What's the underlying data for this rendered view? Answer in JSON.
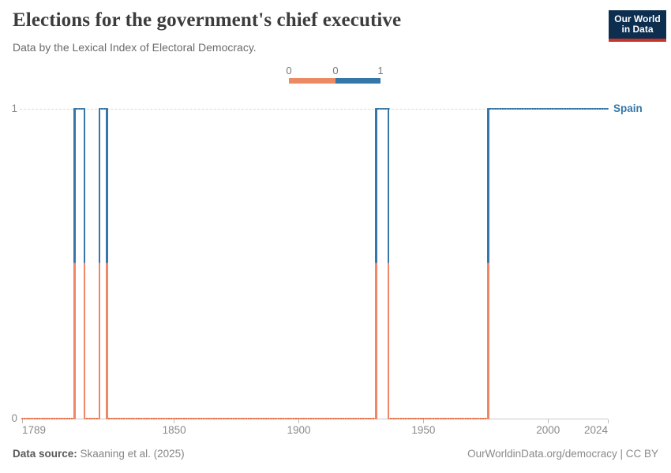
{
  "header": {
    "title": "Elections for the government's chief executive",
    "subtitle": "Data by the Lexical Index of Electoral Democracy."
  },
  "logo": {
    "line1": "Our World",
    "line2": "in Data"
  },
  "legend": {
    "labels": [
      "0",
      "0",
      "1"
    ]
  },
  "footer": {
    "source_label": "Data source:",
    "source_value": " Skaaning et al. (2025)",
    "credit": "OurWorldinData.org/democracy | CC BY"
  },
  "colors": {
    "series_blue": "#3578A8",
    "series_orange": "#ED8766",
    "blue_dot": "#2E6E9F",
    "blue_base": "#5C92BC",
    "orange_dot": "#E2714B",
    "orange_base": "#F2A183",
    "legend_orange": "#ED8A66",
    "legend_blue": "#3578A8",
    "logo_bg": "#0D2E4E",
    "logo_stripe": "#C9342A"
  },
  "chart_data": {
    "type": "line",
    "title": "Elections for the government's chief executive",
    "subtitle": "Data by the Lexical Index of Electoral Democracy.",
    "entity": "Spain",
    "x_axis": {
      "min": 1789,
      "max": 2024,
      "ticks": [
        1789,
        1850,
        1900,
        1950,
        2000,
        2024
      ]
    },
    "y_axis": {
      "min": 0,
      "max": 1,
      "ticks": [
        0,
        1
      ],
      "gridline_at": 1
    },
    "legend": {
      "type": "binary-color-strip",
      "bins": [
        {
          "value": 0,
          "color": "#ED8A66",
          "edge_labels": [
            "0",
            "0"
          ]
        },
        {
          "value": 1,
          "color": "#3578A8",
          "edge_labels": [
            "0",
            "1"
          ]
        }
      ]
    },
    "series": [
      {
        "name": "Spain",
        "color": "#3578A8",
        "value_colors": {
          "0": "#ED8766",
          "1": "#3578A8"
        },
        "segments": [
          {
            "start": 1789,
            "end": 1810,
            "value": 0
          },
          {
            "start": 1810,
            "end": 1814,
            "value": 1
          },
          {
            "start": 1814,
            "end": 1820,
            "value": 0
          },
          {
            "start": 1820,
            "end": 1823,
            "value": 1
          },
          {
            "start": 1823,
            "end": 1931,
            "value": 0
          },
          {
            "start": 1931,
            "end": 1936,
            "value": 1
          },
          {
            "start": 1936,
            "end": 1976,
            "value": 0
          },
          {
            "start": 1976,
            "end": 2024,
            "value": 1
          }
        ]
      }
    ]
  }
}
